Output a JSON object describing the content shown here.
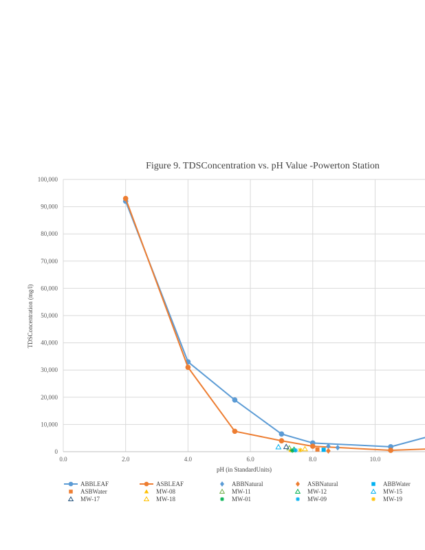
{
  "chart_data": {
    "type": "scatter",
    "title": "Figure 9. TDSConcentration  vs. pH Value -Powerton  Station",
    "xlabel": "pH (in StandardUnits)",
    "ylabel": "TDSConcentration (mg/l)",
    "xlim": [
      0,
      11.6
    ],
    "ylim": [
      0,
      100000
    ],
    "x_ticks": [
      "0.0",
      "2.0",
      "4.0",
      "6.0",
      "8.0",
      "10.0"
    ],
    "x_tick_values": [
      0,
      2,
      4,
      6,
      8,
      10
    ],
    "y_ticks": [
      "0",
      "10,000",
      "20,000",
      "30,000",
      "40,000",
      "50,000",
      "60,000",
      "70,000",
      "80,000",
      "90,000",
      "100,000"
    ],
    "y_tick_values": [
      0,
      10000,
      20000,
      30000,
      40000,
      50000,
      60000,
      70000,
      80000,
      90000,
      100000
    ],
    "grid": true,
    "legend_position": "bottom",
    "series": [
      {
        "name": "ABBLEAF",
        "kind": "line",
        "color": "#5b9bd5",
        "marker": "circle",
        "x": [
          2.0,
          4.0,
          5.5,
          7.0,
          8.0,
          10.5,
          11.7
        ],
        "y": [
          92000,
          33000,
          19000,
          6500,
          3200,
          1800,
          5500
        ]
      },
      {
        "name": "ASBLEAF",
        "kind": "line",
        "color": "#ed7d31",
        "marker": "circle",
        "x": [
          2.0,
          4.0,
          5.5,
          7.0,
          8.0,
          10.5,
          11.7
        ],
        "y": [
          93000,
          31000,
          7500,
          4000,
          2000,
          500,
          1000
        ]
      },
      {
        "name": "ABBNatural",
        "kind": "point",
        "color": "#5b9bd5",
        "marker": "diamond",
        "x": [
          8.5,
          8.8
        ],
        "y": [
          2000,
          1500
        ]
      },
      {
        "name": "ASBNatural",
        "kind": "point",
        "color": "#ed7d31",
        "marker": "diamond",
        "x": [
          8.5
        ],
        "y": [
          300
        ]
      },
      {
        "name": "ABBWater",
        "kind": "point",
        "color": "#00b0f0",
        "marker": "square",
        "x": [
          8.35
        ],
        "y": [
          700
        ]
      },
      {
        "name": "ASBWater",
        "kind": "point",
        "color": "#ed7d31",
        "marker": "square",
        "x": [
          8.15
        ],
        "y": [
          800
        ]
      },
      {
        "name": "MW-08",
        "kind": "point",
        "color": "#ffc000",
        "marker": "triangle-fill",
        "x": [
          7.3
        ],
        "y": [
          600
        ]
      },
      {
        "name": "MW-11",
        "kind": "point",
        "color": "#70ad47",
        "marker": "triangle-open",
        "x": [
          7.25
        ],
        "y": [
          1300
        ]
      },
      {
        "name": "MW-12",
        "kind": "point",
        "color": "#00b050",
        "marker": "triangle-open",
        "x": [
          7.4
        ],
        "y": [
          800
        ]
      },
      {
        "name": "MW-15",
        "kind": "point",
        "color": "#00b0f0",
        "marker": "triangle-open",
        "x": [
          6.9
        ],
        "y": [
          1700
        ]
      },
      {
        "name": "MW-17",
        "kind": "point",
        "color": "#1f4e79",
        "marker": "triangle-open",
        "x": [
          7.15
        ],
        "y": [
          1800
        ]
      },
      {
        "name": "MW-18",
        "kind": "point",
        "color": "#ffc000",
        "marker": "triangle-open",
        "x": [
          7.75
        ],
        "y": [
          1000
        ]
      },
      {
        "name": "MW-01",
        "kind": "point",
        "color": "#00b050",
        "marker": "star",
        "x": [
          7.35
        ],
        "y": [
          400
        ]
      },
      {
        "name": "MW-09",
        "kind": "point",
        "color": "#00b0f0",
        "marker": "star",
        "x": [
          7.45
        ],
        "y": [
          500
        ]
      },
      {
        "name": "MW-19",
        "kind": "point",
        "color": "#ffc000",
        "marker": "star",
        "x": [
          7.6
        ],
        "y": [
          600
        ]
      }
    ]
  }
}
